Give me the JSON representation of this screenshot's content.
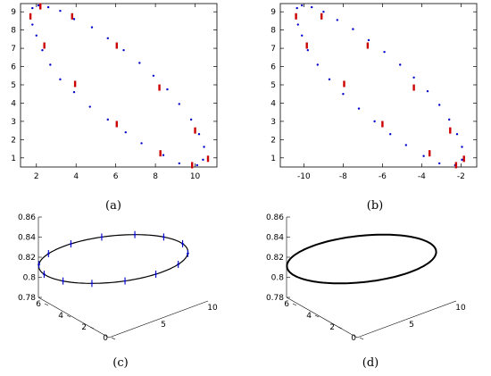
{
  "chart_data": [
    {
      "panel": "a",
      "caption": "(a)",
      "type": "scatter",
      "xticks": [
        "2",
        "4",
        "6",
        "8",
        "10"
      ],
      "yticks": [
        "1",
        "2",
        "3",
        "4",
        "5",
        "6",
        "7",
        "8",
        "9"
      ],
      "xlim": [
        1.2,
        11.1
      ],
      "ylim": [
        0.5,
        9.45
      ],
      "series": [
        {
          "marker": "dot",
          "color": "#0000cc",
          "points": [
            [
              1.8,
              9.2
            ],
            [
              2.1,
              9.35
            ],
            [
              2.6,
              9.25
            ],
            [
              3.2,
              9.05
            ],
            [
              3.9,
              8.6
            ],
            [
              4.8,
              8.15
            ],
            [
              5.6,
              7.55
            ],
            [
              6.4,
              6.9
            ],
            [
              7.2,
              6.2
            ],
            [
              7.9,
              5.5
            ],
            [
              8.6,
              4.75
            ],
            [
              9.2,
              3.95
            ],
            [
              9.8,
              3.1
            ],
            [
              10.2,
              2.3
            ],
            [
              10.45,
              1.6
            ],
            [
              10.4,
              0.9
            ],
            [
              10.1,
              0.6
            ],
            [
              9.2,
              0.7
            ],
            [
              8.4,
              1.15
            ],
            [
              7.3,
              1.8
            ],
            [
              6.5,
              2.4
            ],
            [
              5.6,
              3.1
            ],
            [
              4.7,
              3.8
            ],
            [
              3.9,
              4.6
            ],
            [
              3.2,
              5.3
            ],
            [
              2.7,
              6.1
            ],
            [
              2.3,
              6.9
            ],
            [
              2.0,
              7.7
            ],
            [
              1.8,
              8.3
            ]
          ]
        },
        {
          "marker": "bar",
          "color": "#cc0000",
          "points": [
            [
              1.7,
              8.75
            ],
            [
              2.2,
              9.3
            ],
            [
              3.8,
              8.75
            ],
            [
              2.4,
              7.15
            ],
            [
              6.05,
              7.15
            ],
            [
              3.95,
              5.05
            ],
            [
              8.2,
              4.85
            ],
            [
              6.05,
              2.85
            ],
            [
              10.0,
              2.5
            ],
            [
              10.65,
              0.95
            ],
            [
              8.25,
              1.25
            ],
            [
              9.85,
              0.6
            ]
          ]
        }
      ]
    },
    {
      "panel": "b",
      "caption": "(b)",
      "type": "scatter",
      "xticks": [
        "-10",
        "-8",
        "-6",
        "-4",
        "-2"
      ],
      "yticks": [
        "1",
        "2",
        "3",
        "4",
        "5",
        "6",
        "7",
        "8",
        "9"
      ],
      "xlim": [
        -11.2,
        -1.2
      ],
      "ylim": [
        0.5,
        9.45
      ],
      "series": [
        {
          "marker": "dot",
          "color": "#0000cc",
          "points": [
            [
              -10.35,
              9.2
            ],
            [
              -10.1,
              9.35
            ],
            [
              -9.6,
              9.25
            ],
            [
              -9.0,
              9.0
            ],
            [
              -8.3,
              8.55
            ],
            [
              -7.5,
              8.05
            ],
            [
              -6.7,
              7.45
            ],
            [
              -5.9,
              6.8
            ],
            [
              -5.1,
              6.1
            ],
            [
              -4.4,
              5.4
            ],
            [
              -3.7,
              4.65
            ],
            [
              -3.1,
              3.9
            ],
            [
              -2.6,
              3.1
            ],
            [
              -2.2,
              2.3
            ],
            [
              -1.95,
              1.6
            ],
            [
              -1.95,
              0.9
            ],
            [
              -2.3,
              0.6
            ],
            [
              -3.1,
              0.7
            ],
            [
              -3.9,
              1.1
            ],
            [
              -4.8,
              1.7
            ],
            [
              -5.6,
              2.3
            ],
            [
              -6.4,
              3.0
            ],
            [
              -7.2,
              3.7
            ],
            [
              -8.0,
              4.5
            ],
            [
              -8.7,
              5.3
            ],
            [
              -9.3,
              6.1
            ],
            [
              -9.8,
              6.9
            ],
            [
              -10.1,
              7.7
            ],
            [
              -10.3,
              8.3
            ]
          ]
        },
        {
          "marker": "bar",
          "color": "#cc0000",
          "points": [
            [
              -10.4,
              8.75
            ],
            [
              -9.1,
              8.75
            ],
            [
              -9.85,
              7.15
            ],
            [
              -6.75,
              7.15
            ],
            [
              -7.95,
              5.05
            ],
            [
              -4.4,
              4.85
            ],
            [
              -6.0,
              2.85
            ],
            [
              -2.55,
              2.5
            ],
            [
              -3.6,
              1.25
            ],
            [
              -1.85,
              0.95
            ],
            [
              -2.25,
              0.6
            ]
          ]
        }
      ]
    },
    {
      "panel": "c",
      "caption": "(c)",
      "type": "line",
      "zticks": [
        "0.78",
        "0.8",
        "0.82",
        "0.84",
        "0.86"
      ],
      "yticks": [
        "0",
        "2",
        "4",
        "6"
      ],
      "xticks": [
        "5",
        "10"
      ],
      "zlim": [
        0.78,
        0.86
      ],
      "ellipse": {
        "center_z": 0.82,
        "color": "#000000",
        "markers_color": "#0000cc",
        "marker_count": 14
      }
    },
    {
      "panel": "d",
      "caption": "(d)",
      "type": "line",
      "zticks": [
        "0.78",
        "0.8",
        "0.82",
        "0.84",
        "0.86"
      ],
      "yticks": [
        "0",
        "2",
        "4",
        "6"
      ],
      "xticks": [
        "5",
        "10"
      ],
      "zlim": [
        0.78,
        0.86
      ],
      "ellipse": {
        "center_z": 0.82,
        "color": "#000000",
        "markers_color": "",
        "marker_count": 0
      }
    }
  ]
}
